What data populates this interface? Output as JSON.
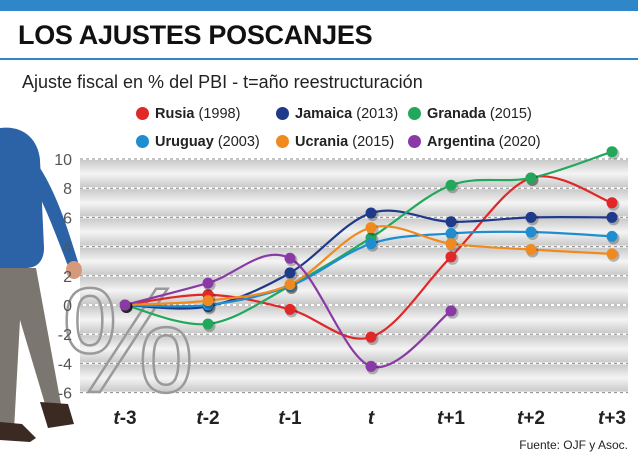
{
  "header": {
    "title": "LOS AJUSTES POSCANJES",
    "subtitle": "Ajuste fiscal en % del PBI  -  t=año reestructuración",
    "source": "Fuente: OJF y Asoc."
  },
  "chart_data": {
    "type": "line",
    "title": "LOS AJUSTES POSCANJES",
    "ylabel": "%",
    "categories": [
      "t-3",
      "t-2",
      "t-1",
      "t",
      "t+1",
      "t+2",
      "t+3"
    ],
    "yticks": [
      "10",
      "8",
      "6",
      "4",
      "2",
      "0",
      "-2",
      "-4",
      "-6"
    ],
    "ylim": [
      -6,
      10
    ],
    "grid": true,
    "legend_position": "top",
    "series": [
      {
        "name": "Rusia",
        "year": "(1998)",
        "color": "#e02828",
        "values": [
          0,
          0.7,
          -0.3,
          -2.2,
          3.3,
          8.7,
          7.0
        ]
      },
      {
        "name": "Jamaica",
        "year": "(2013)",
        "color": "#1f3a8a",
        "values": [
          0,
          -0.1,
          2.2,
          6.3,
          5.7,
          6.0,
          6.0
        ]
      },
      {
        "name": "Granada",
        "year": "(2015)",
        "color": "#22a85a",
        "values": [
          0,
          -1.3,
          1.3,
          4.6,
          8.2,
          8.7,
          10.5
        ]
      },
      {
        "name": "Uruguay",
        "year": "(2003)",
        "color": "#1e8ed0",
        "values": [
          0,
          0,
          1.3,
          4.2,
          4.9,
          5.0,
          4.7
        ]
      },
      {
        "name": "Ucrania",
        "year": "(2015)",
        "color": "#f08a1e",
        "values": [
          0,
          0.3,
          1.4,
          5.3,
          4.2,
          3.8,
          3.5
        ]
      },
      {
        "name": "Argentina",
        "year": "(2020)",
        "color": "#8a3aa6",
        "values": [
          0,
          1.5,
          3.2,
          -4.2,
          -0.4,
          null,
          null
        ]
      }
    ]
  }
}
